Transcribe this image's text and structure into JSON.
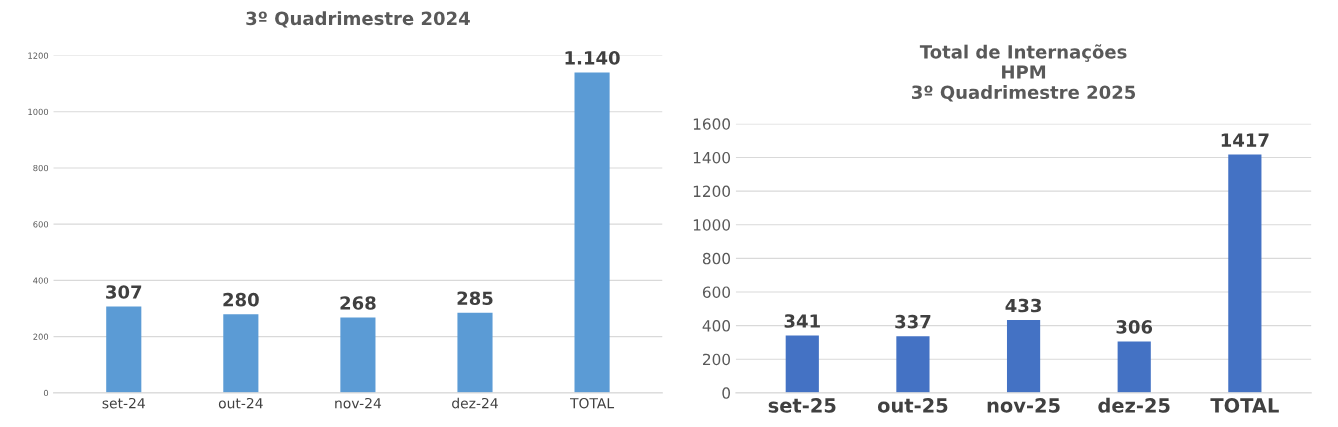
{
  "chart_data": [
    {
      "type": "bar",
      "title": "3º Quadrimestre 2024",
      "categories": [
        "set-24",
        "out-24",
        "nov-24",
        "dez-24",
        "TOTAL"
      ],
      "values": [
        307,
        280,
        268,
        285,
        1140
      ],
      "value_labels": [
        "307",
        "280",
        "268",
        "285",
        "1.140"
      ],
      "color": "#5b9bd5",
      "ylim": [
        0,
        1200
      ],
      "yticks": [
        0,
        200,
        400,
        600,
        800,
        1000,
        1200
      ],
      "grid": "y"
    },
    {
      "type": "bar",
      "title": "Total de Internações\nHPM\n3º Quadrimestre 2025",
      "categories": [
        "set-25",
        "out-25",
        "nov-25",
        "dez-25",
        "TOTAL"
      ],
      "values": [
        341,
        337,
        433,
        306,
        1417
      ],
      "data_labels": true,
      "color": "#4472c4",
      "ylim": [
        0,
        1600
      ],
      "yticks": [
        0,
        200,
        400,
        600,
        800,
        1000,
        1200,
        1400,
        1600
      ],
      "grid": "y"
    }
  ]
}
